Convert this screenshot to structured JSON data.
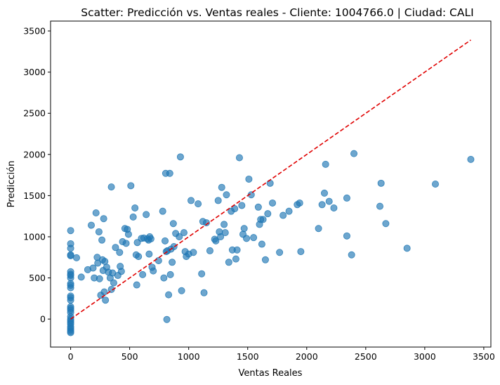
{
  "chart_data": {
    "type": "scatter",
    "title": "Scatter: Predicción vs. Ventas reales - Cliente: 1004766.0 | Ciudad: CALI",
    "xlabel": "Ventas Reales",
    "ylabel": "Predicción",
    "xlim": [
      -170,
      3560
    ],
    "ylim": [
      -340,
      3620
    ],
    "xticks": [
      0,
      500,
      1000,
      1500,
      2000,
      2500,
      3000,
      3500
    ],
    "yticks": [
      0,
      500,
      1000,
      1500,
      2000,
      2500,
      3000,
      3500
    ],
    "grid": false,
    "point_color": "#1f77b4",
    "point_alpha": 0.65,
    "reference_line": {
      "from": [
        0,
        0
      ],
      "to": [
        3390,
        3390
      ],
      "color": "#e00000",
      "style": "dashed"
    },
    "series": [
      {
        "points": [
          [
            0,
            1075
          ],
          [
            0,
            915
          ],
          [
            0,
            860
          ],
          [
            0,
            780
          ],
          [
            0,
            770
          ],
          [
            0,
            575
          ],
          [
            0,
            545
          ],
          [
            0,
            530
          ],
          [
            0,
            500
          ],
          [
            0,
            430
          ],
          [
            0,
            410
          ],
          [
            0,
            380
          ],
          [
            0,
            280
          ],
          [
            0,
            260
          ],
          [
            0,
            230
          ],
          [
            0,
            150
          ],
          [
            0,
            130
          ],
          [
            0,
            110
          ],
          [
            0,
            80
          ],
          [
            0,
            30
          ],
          [
            0,
            0
          ],
          [
            0,
            -20
          ],
          [
            0,
            -40
          ],
          [
            0,
            -60
          ],
          [
            0,
            -90
          ],
          [
            0,
            -110
          ],
          [
            0,
            -130
          ],
          [
            0,
            -150
          ],
          [
            0,
            -165
          ],
          [
            50,
            745
          ],
          [
            90,
            510
          ],
          [
            145,
            600
          ],
          [
            175,
            1140
          ],
          [
            190,
            620
          ],
          [
            200,
            500
          ],
          [
            215,
            1290
          ],
          [
            225,
            750
          ],
          [
            230,
            680
          ],
          [
            240,
            1060
          ],
          [
            245,
            490
          ],
          [
            255,
            290
          ],
          [
            265,
            960
          ],
          [
            270,
            720
          ],
          [
            275,
            590
          ],
          [
            280,
            1220
          ],
          [
            285,
            330
          ],
          [
            290,
            700
          ],
          [
            295,
            230
          ],
          [
            305,
            630
          ],
          [
            320,
            570
          ],
          [
            335,
            500
          ],
          [
            345,
            1605
          ],
          [
            345,
            360
          ],
          [
            355,
            560
          ],
          [
            365,
            440
          ],
          [
            380,
            870
          ],
          [
            400,
            530
          ],
          [
            415,
            810
          ],
          [
            420,
            640
          ],
          [
            430,
            580
          ],
          [
            440,
            940
          ],
          [
            460,
            1100
          ],
          [
            470,
            920
          ],
          [
            480,
            1090
          ],
          [
            490,
            1030
          ],
          [
            510,
            1620
          ],
          [
            530,
            1240
          ],
          [
            545,
            1350
          ],
          [
            555,
            780
          ],
          [
            560,
            415
          ],
          [
            565,
            930
          ],
          [
            575,
            760
          ],
          [
            600,
            980
          ],
          [
            610,
            540
          ],
          [
            620,
            985
          ],
          [
            640,
            1270
          ],
          [
            650,
            975
          ],
          [
            660,
            960
          ],
          [
            665,
            790
          ],
          [
            670,
            1000
          ],
          [
            680,
            975
          ],
          [
            690,
            630
          ],
          [
            700,
            585
          ],
          [
            745,
            710
          ],
          [
            780,
            1310
          ],
          [
            790,
            500
          ],
          [
            800,
            950
          ],
          [
            805,
            1770
          ],
          [
            810,
            820
          ],
          [
            815,
            -5
          ],
          [
            820,
            830
          ],
          [
            830,
            295
          ],
          [
            840,
            1770
          ],
          [
            845,
            540
          ],
          [
            850,
            850
          ],
          [
            860,
            690
          ],
          [
            870,
            1160
          ],
          [
            875,
            880
          ],
          [
            890,
            1040
          ],
          [
            920,
            1000
          ],
          [
            930,
            1970
          ],
          [
            940,
            345
          ],
          [
            960,
            1050
          ],
          [
            970,
            820
          ],
          [
            980,
            760
          ],
          [
            1000,
            790
          ],
          [
            1020,
            1440
          ],
          [
            1040,
            810
          ],
          [
            1080,
            1400
          ],
          [
            1110,
            550
          ],
          [
            1120,
            1185
          ],
          [
            1130,
            320
          ],
          [
            1150,
            1170
          ],
          [
            1180,
            830
          ],
          [
            1220,
            970
          ],
          [
            1230,
            950
          ],
          [
            1250,
            1440
          ],
          [
            1260,
            1060
          ],
          [
            1270,
            1000
          ],
          [
            1280,
            1600
          ],
          [
            1300,
            1150
          ],
          [
            1310,
            1050
          ],
          [
            1320,
            1510
          ],
          [
            1340,
            690
          ],
          [
            1360,
            1310
          ],
          [
            1370,
            840
          ],
          [
            1390,
            1340
          ],
          [
            1400,
            730
          ],
          [
            1410,
            840
          ],
          [
            1430,
            1960
          ],
          [
            1450,
            1380
          ],
          [
            1460,
            1030
          ],
          [
            1470,
            1100
          ],
          [
            1490,
            980
          ],
          [
            1510,
            1700
          ],
          [
            1530,
            1510
          ],
          [
            1550,
            990
          ],
          [
            1590,
            1360
          ],
          [
            1600,
            1150
          ],
          [
            1610,
            1210
          ],
          [
            1620,
            910
          ],
          [
            1630,
            1210
          ],
          [
            1650,
            720
          ],
          [
            1670,
            1280
          ],
          [
            1690,
            1650
          ],
          [
            1710,
            1410
          ],
          [
            1770,
            810
          ],
          [
            1800,
            1260
          ],
          [
            1850,
            1310
          ],
          [
            1920,
            1390
          ],
          [
            1940,
            1410
          ],
          [
            1950,
            820
          ],
          [
            2100,
            1100
          ],
          [
            2130,
            1390
          ],
          [
            2150,
            1530
          ],
          [
            2160,
            1880
          ],
          [
            2190,
            1430
          ],
          [
            2230,
            1350
          ],
          [
            2340,
            1470
          ],
          [
            2340,
            1010
          ],
          [
            2380,
            780
          ],
          [
            2400,
            2010
          ],
          [
            2620,
            1370
          ],
          [
            2630,
            1650
          ],
          [
            2670,
            1160
          ],
          [
            2850,
            860
          ],
          [
            3090,
            1640
          ],
          [
            3390,
            1940
          ]
        ]
      }
    ]
  }
}
